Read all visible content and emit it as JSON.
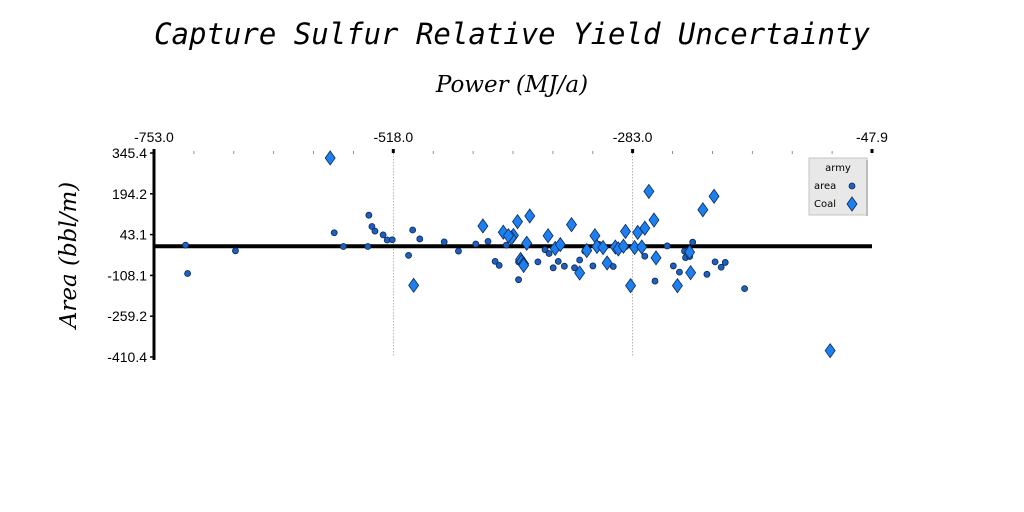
{
  "chart_data": {
    "type": "scatter",
    "title": "Capture Sulfur Relative Yield Uncertainty",
    "xlabel": "Power (MJ/a)",
    "ylabel": "Area (bbl/m)",
    "xlim": [
      -753.0,
      -47.9
    ],
    "ylim": [
      -410.4,
      345.4
    ],
    "x_ticks": [
      "-753.0",
      "-518.0",
      "-283.0",
      "-47.9"
    ],
    "x_tick_values": [
      -753.0,
      -518.0,
      -283.0,
      -47.9
    ],
    "y_ticks": [
      "345.4",
      "194.2",
      "43.1",
      "-108.1",
      "-259.2",
      "-410.4"
    ],
    "y_tick_values": [
      345.4,
      194.2,
      43.1,
      -108.1,
      -259.2,
      -410.4
    ],
    "x_axis_position": "top",
    "zero_line": true,
    "grid": "vertical dotted at major x ticks",
    "legend": {
      "title": "army",
      "placement": "top-right",
      "entries": [
        {
          "label": "area",
          "marker": "circle",
          "color": "#1f5fbf"
        },
        {
          "label": "Coal",
          "marker": "diamond",
          "color": "#1e7ff0"
        }
      ]
    },
    "series": [
      {
        "name": "area",
        "marker": "circle",
        "color": "#1f5fbf",
        "points": [
          [
            -722,
            4
          ],
          [
            -720,
            -101
          ],
          [
            -673,
            -17
          ],
          [
            -576,
            50
          ],
          [
            -567,
            -1
          ],
          [
            -543,
            -1
          ],
          [
            -542,
            115
          ],
          [
            -539,
            73
          ],
          [
            -536,
            56
          ],
          [
            -528,
            42
          ],
          [
            -524,
            23
          ],
          [
            -519,
            24
          ],
          [
            -503,
            -34
          ],
          [
            -499,
            60
          ],
          [
            -492,
            27
          ],
          [
            -468,
            16
          ],
          [
            -454,
            -18
          ],
          [
            -437,
            8
          ],
          [
            -425,
            18
          ],
          [
            -418,
            -56
          ],
          [
            -414,
            -71
          ],
          [
            -407,
            4
          ],
          [
            -395,
            -124
          ],
          [
            -395,
            -58
          ],
          [
            -376,
            -58
          ],
          [
            -369,
            -13
          ],
          [
            -365,
            -27
          ],
          [
            -361,
            -80
          ],
          [
            -356,
            -56
          ],
          [
            -350,
            -74
          ],
          [
            -340,
            -80
          ],
          [
            -335,
            -51
          ],
          [
            -330,
            -18
          ],
          [
            -322,
            -73
          ],
          [
            -316,
            7
          ],
          [
            -302,
            -75
          ],
          [
            -290,
            -2
          ],
          [
            -273,
            0
          ],
          [
            -261,
            -129
          ],
          [
            -249,
            1
          ],
          [
            -243,
            -73
          ],
          [
            -237,
            -96
          ],
          [
            -231,
            -42
          ],
          [
            -227,
            -38
          ],
          [
            -224,
            15
          ],
          [
            -232,
            -18
          ],
          [
            -271,
            -37
          ],
          [
            -202,
            -58
          ],
          [
            -196,
            -78
          ],
          [
            -192,
            -60
          ],
          [
            -210,
            -104
          ],
          [
            -173,
            -157
          ]
        ]
      },
      {
        "name": "Coal",
        "marker": "diamond",
        "color": "#1e7ff0",
        "points": [
          [
            -580,
            327
          ],
          [
            -498,
            -145
          ],
          [
            -430,
            75
          ],
          [
            -410,
            52
          ],
          [
            -400,
            40
          ],
          [
            -402,
            31
          ],
          [
            -405,
            39
          ],
          [
            -396,
            91
          ],
          [
            -393,
            -49
          ],
          [
            -392,
            -57
          ],
          [
            -390,
            -65
          ],
          [
            -390,
            -71
          ],
          [
            -387,
            11
          ],
          [
            -384,
            112
          ],
          [
            -366,
            39
          ],
          [
            -359,
            -8
          ],
          [
            -354,
            6
          ],
          [
            -343,
            80
          ],
          [
            -335,
            -99
          ],
          [
            -328,
            -16
          ],
          [
            -320,
            39
          ],
          [
            -318,
            -1
          ],
          [
            -312,
            -5
          ],
          [
            -308,
            -62
          ],
          [
            -300,
            -3
          ],
          [
            -297,
            -10
          ],
          [
            -292,
            0
          ],
          [
            -290,
            55
          ],
          [
            -285,
            -146
          ],
          [
            -281,
            -5
          ],
          [
            -278,
            51
          ],
          [
            -274,
            -3
          ],
          [
            -271,
            67
          ],
          [
            -267,
            203
          ],
          [
            -262,
            97
          ],
          [
            -260,
            -43
          ],
          [
            -239,
            -146
          ],
          [
            -227,
            -22
          ],
          [
            -226,
            -98
          ],
          [
            -214,
            135
          ],
          [
            -203,
            185
          ],
          [
            -89,
            -387
          ]
        ]
      }
    ]
  }
}
